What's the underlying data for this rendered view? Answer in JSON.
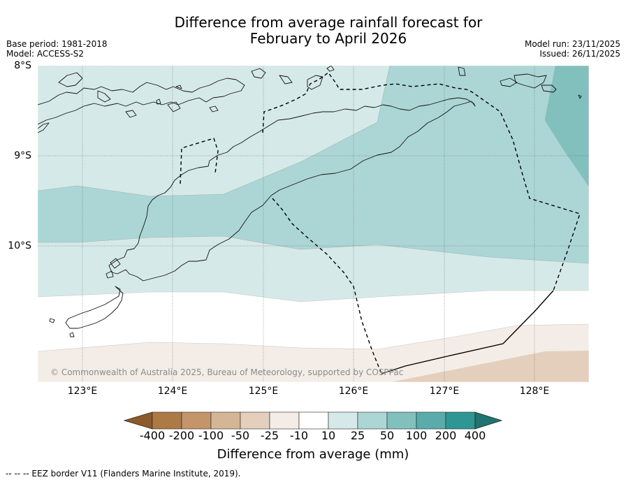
{
  "title": {
    "line1": "Difference from average rainfall forecast for",
    "line2": "February to April 2026"
  },
  "meta_left": {
    "base_period": "Base period: 1981-2018",
    "model": "Model: ACCESS-S2"
  },
  "meta_right": {
    "model_run": "Model run: 23/11/2025",
    "issued": "Issued: 26/11/2025"
  },
  "map": {
    "lat_labels": [
      "8°S",
      "9°S",
      "10°S"
    ],
    "lon_labels": [
      "123°E",
      "124°E",
      "125°E",
      "126°E",
      "127°E",
      "128°E"
    ],
    "credit": "© Commonwealth of Australia 2025, Bureau of Meteorology, supported by COSPPac"
  },
  "colorbar": {
    "ticks": [
      "-400",
      "-200",
      "-100",
      "-50",
      "-25",
      "-10",
      "10",
      "25",
      "50",
      "100",
      "200",
      "400"
    ],
    "colors": [
      "#8c5a2b",
      "#ad7a45",
      "#c4956a",
      "#d4b595",
      "#e3cfbb",
      "#f4ede7",
      "#ffffff",
      "#d5e9e8",
      "#acd6d5",
      "#82c0be",
      "#5aaba9",
      "#2f9793",
      "#1e7572"
    ],
    "label": "Difference from average (mm)"
  },
  "footnote": "--  --  -- EEZ border V11 (Flanders Marine Institute, 2019)."
}
